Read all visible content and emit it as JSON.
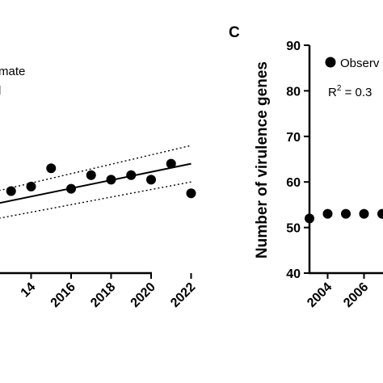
{
  "chart_data": [
    {
      "panel": "left",
      "type": "scatter",
      "x": [
        2013,
        2014,
        2015,
        2016,
        2017,
        2018,
        2019,
        2020,
        2021,
        2022
      ],
      "y": [
        58,
        59,
        63,
        58.5,
        61.5,
        60.5,
        61.5,
        60.5,
        64,
        57.5
      ],
      "fit_line": {
        "x": [
          2012,
          2022
        ],
        "y": [
          55.0,
          64.0
        ]
      },
      "ci_upper": {
        "x": [
          2012,
          2022
        ],
        "y": [
          57.7,
          68.0
        ]
      },
      "ci_lower": {
        "x": [
          2012,
          2022
        ],
        "y": [
          51.7,
          60.0
        ]
      },
      "xlim": [
        2012,
        2022
      ],
      "ylim": [
        40,
        90
      ],
      "x_tick_labels": [
        "14",
        "2016",
        "2018",
        "2020",
        "2022"
      ],
      "legend_fragments": [
        "mate",
        "l"
      ],
      "colors": {
        "points": "#000000",
        "line": "#000000"
      }
    },
    {
      "panel": "C",
      "type": "scatter",
      "panel_label": "C",
      "ylabel": "Number of virulence genes",
      "ylim": [
        40,
        90
      ],
      "y_ticks": [
        "40",
        "50",
        "60",
        "70",
        "80",
        "90"
      ],
      "x": [
        2003,
        2004,
        2005,
        2006,
        2007
      ],
      "y": [
        52,
        53,
        53,
        53,
        53
      ],
      "x_tick_labels": [
        "2004",
        "2006",
        "20"
      ],
      "legend": "Observ",
      "r2_text": "R",
      "r2_sup": "2",
      "r2_value": " = 0.3",
      "colors": {
        "points": "#000000"
      }
    }
  ]
}
